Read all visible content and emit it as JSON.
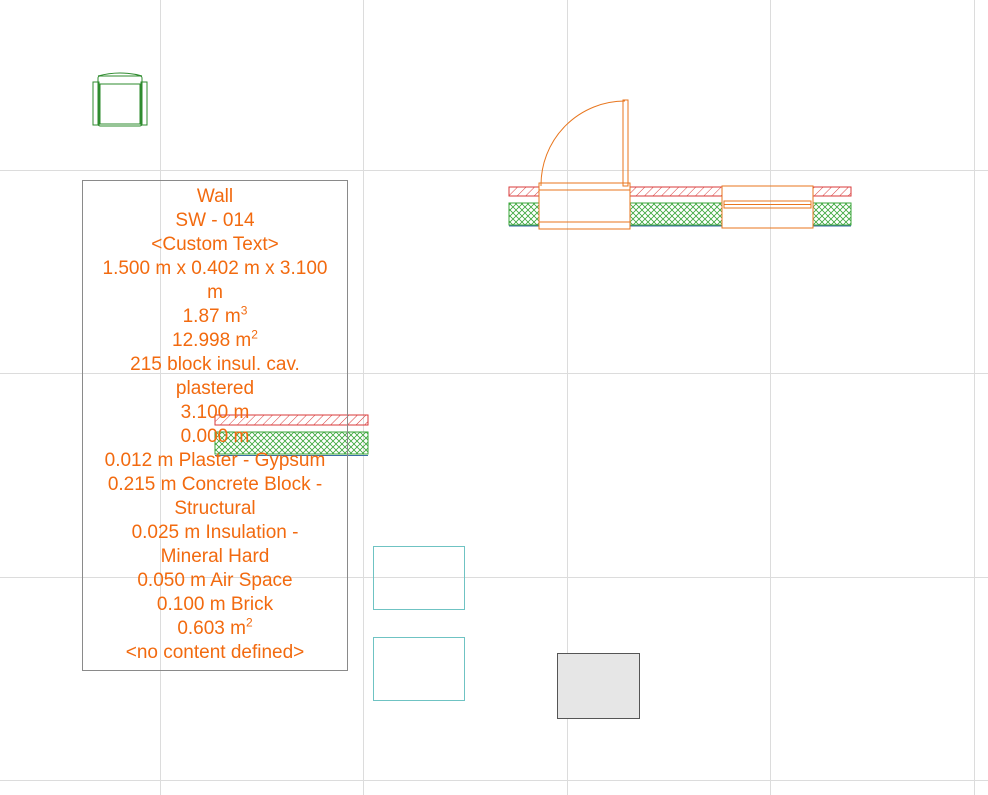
{
  "colors": {
    "grid": "#dcdcdc",
    "label_text": "#f26a0f",
    "wall_outline": "#e8761e",
    "hatch_red": "#d83a3a",
    "hatch_green": "#3aa63a",
    "furniture_green": "#2e8b2e",
    "teal_box": "#6fc3c3",
    "gray_box_fill": "#e6e6e6",
    "gray_box_stroke": "#555555"
  },
  "label": {
    "line_1": "Wall",
    "line_2": "SW - 014",
    "line_3": "<Custom Text>",
    "line_4": "1.500 m x 0.402 m x 3.100",
    "line_5": "m",
    "volume_value": "1.87 m",
    "volume_exp": "3",
    "area_value": "12.998 m",
    "area_exp": "2",
    "line_8": "215 block insul. cav.",
    "line_9": "plastered",
    "line_10": "3.100 m",
    "line_11": "0.000 m",
    "line_12": "0.012 m  Plaster - Gypsum",
    "line_13": "0.215 m  Concrete Block -",
    "line_14": "Structural",
    "line_15": "0.025 m  Insulation -",
    "line_16": "Mineral Hard",
    "line_17": "0.050 m  Air Space",
    "line_18": "0.100 m  Brick",
    "surface_value": "0.603 m",
    "surface_exp": "2",
    "line_20": "<no content defined>"
  }
}
